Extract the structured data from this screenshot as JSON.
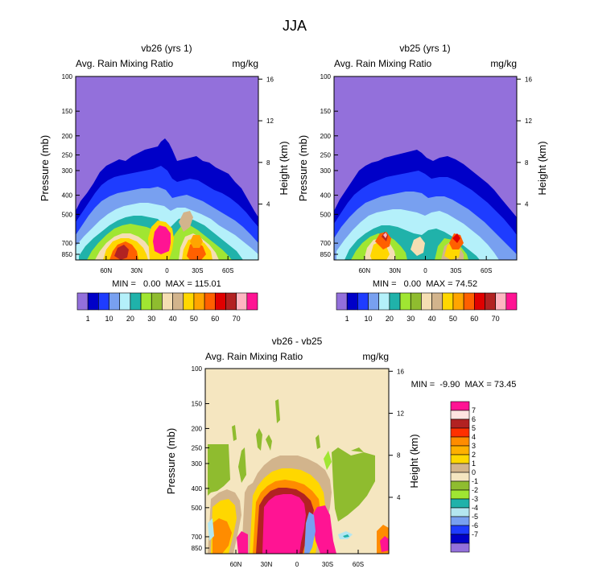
{
  "figure": {
    "title": "JJA"
  },
  "chart_data": [
    {
      "type": "heatmap",
      "title": "vb26 (yrs 1)",
      "left_label": "Avg. Rain Mixing Ratio",
      "units": "mg/kg",
      "ylabel": "Pressure (mb)",
      "ylabel_right": "Height (km)",
      "y_ticks": [
        "100",
        "150",
        "200",
        "250",
        "300",
        "400",
        "500",
        "700",
        "850"
      ],
      "y_right_ticks": [
        "16",
        "12",
        "8",
        "4"
      ],
      "x_ticks": [
        "60N",
        "30N",
        "0",
        "30S",
        "60S"
      ],
      "stats": "MIN =   0.00  MAX = 115.01",
      "colorbar_labels": [
        "1",
        "10",
        "20",
        "30",
        "40",
        "50",
        "60",
        "70"
      ],
      "colorbar_colors": [
        "#9370db",
        "#0000c8",
        "#1e3cff",
        "#78a0f0",
        "#b4f0fa",
        "#20b2aa",
        "#a0e632",
        "#8fbc2f",
        "#f5deb3",
        "#d2b48c",
        "#ffd700",
        "#ffa500",
        "#ff6000",
        "#e00000",
        "#b22222",
        "#ffb6c1",
        "#ff1493"
      ]
    },
    {
      "type": "heatmap",
      "title": "vb25 (yrs 1)",
      "left_label": "Avg. Rain Mixing Ratio",
      "units": "mg/kg",
      "ylabel": "Pressure (mb)",
      "ylabel_right": "Height (km)",
      "y_ticks": [
        "100",
        "150",
        "200",
        "250",
        "300",
        "400",
        "500",
        "700",
        "850"
      ],
      "y_right_ticks": [
        "16",
        "12",
        "8",
        "4"
      ],
      "x_ticks": [
        "60N",
        "30N",
        "0",
        "30S",
        "60S"
      ],
      "stats": "MIN =   0.00  MAX = 74.52",
      "colorbar_labels": [
        "1",
        "10",
        "20",
        "30",
        "40",
        "50",
        "60",
        "70"
      ],
      "colorbar_colors": [
        "#9370db",
        "#0000c8",
        "#1e3cff",
        "#78a0f0",
        "#b4f0fa",
        "#20b2aa",
        "#a0e632",
        "#8fbc2f",
        "#f5deb3",
        "#d2b48c",
        "#ffd700",
        "#ffa500",
        "#ff6000",
        "#e00000",
        "#b22222",
        "#ffb6c1",
        "#ff1493"
      ]
    },
    {
      "type": "heatmap",
      "title": "vb26 - vb25",
      "left_label": "Avg. Rain Mixing Ratio",
      "units": "mg/kg",
      "ylabel": "Pressure (mb)",
      "ylabel_right": "Height (km)",
      "y_ticks": [
        "100",
        "150",
        "200",
        "250",
        "300",
        "400",
        "500",
        "700",
        "850"
      ],
      "y_right_ticks": [
        "16",
        "12",
        "8",
        "4"
      ],
      "x_ticks": [
        "60N",
        "30N",
        "0",
        "30S",
        "60S"
      ],
      "stats": "MIN =  -9.90  MAX = 73.45",
      "colorbar_labels": [
        "7",
        "6",
        "5",
        "4",
        "3",
        "2",
        "1",
        "0",
        "-1",
        "-2",
        "-3",
        "-4",
        "-5",
        "-6",
        "-7"
      ],
      "colorbar_colors": [
        "#ff1493",
        "#ffe4e1",
        "#b22222",
        "#ff3000",
        "#ff8c00",
        "#ffb000",
        "#ffd700",
        "#d2b48c",
        "#f5e6c0",
        "#8fbc2f",
        "#a0e632",
        "#20b2aa",
        "#b4e6f0",
        "#78a0f0",
        "#1e3cff",
        "#0000c8",
        "#9370db"
      ]
    }
  ]
}
